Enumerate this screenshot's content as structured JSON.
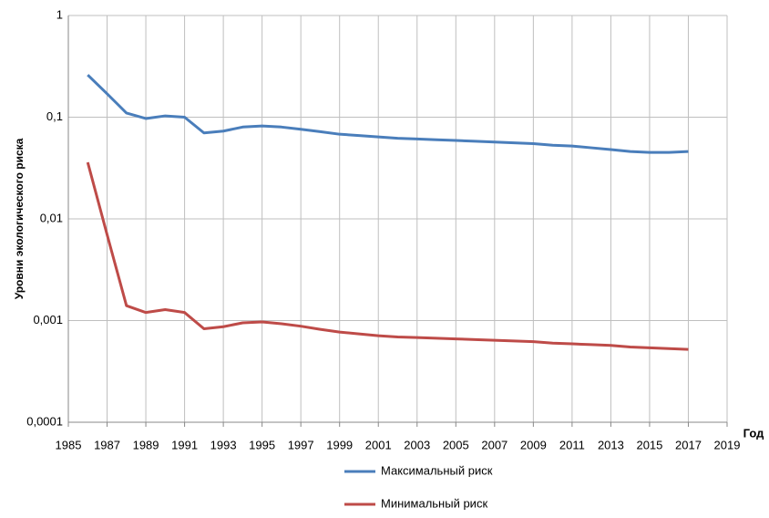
{
  "chart_data": {
    "type": "line",
    "y_label": "Уровни экологического риска",
    "x_label": "Год",
    "x": [
      1986,
      1987,
      1988,
      1989,
      1990,
      1991,
      1992,
      1993,
      1994,
      1995,
      1996,
      1997,
      1998,
      1999,
      2000,
      2001,
      2002,
      2003,
      2004,
      2005,
      2006,
      2007,
      2008,
      2009,
      2010,
      2011,
      2012,
      2013,
      2014,
      2015,
      2016,
      2017
    ],
    "series": [
      {
        "name": "Максимальный риск",
        "color": "#4a7ebb",
        "values": [
          0.26,
          0.17,
          0.11,
          0.097,
          0.103,
          0.1,
          0.07,
          0.073,
          0.08,
          0.082,
          0.08,
          0.076,
          0.072,
          0.068,
          0.066,
          0.064,
          0.062,
          0.061,
          0.06,
          0.059,
          0.058,
          0.057,
          0.056,
          0.055,
          0.053,
          0.052,
          0.05,
          0.048,
          0.046,
          0.045,
          0.045,
          0.046
        ]
      },
      {
        "name": "Минимальный риск",
        "color": "#be4b48",
        "values": [
          0.036,
          0.007,
          0.0014,
          0.0012,
          0.00128,
          0.0012,
          0.00083,
          0.00087,
          0.00095,
          0.00097,
          0.00093,
          0.00088,
          0.00082,
          0.00077,
          0.00074,
          0.00071,
          0.00069,
          0.00068,
          0.00067,
          0.00066,
          0.00065,
          0.00064,
          0.00063,
          0.00062,
          0.0006,
          0.00059,
          0.00058,
          0.00057,
          0.00055,
          0.00054,
          0.00053,
          0.00052
        ]
      }
    ],
    "xlim": [
      1985,
      2019
    ],
    "xticks": [
      1985,
      1987,
      1989,
      1991,
      1993,
      1995,
      1997,
      1999,
      2001,
      2003,
      2005,
      2007,
      2009,
      2011,
      2013,
      2015,
      2017,
      2019
    ],
    "ylim": [
      0.0001,
      1
    ],
    "yticks": [
      {
        "value": 0.0001,
        "label": "0,0001"
      },
      {
        "value": 0.001,
        "label": "0,001"
      },
      {
        "value": 0.01,
        "label": "0,01"
      },
      {
        "value": 0.1,
        "label": "0,1"
      },
      1
    ],
    "log_y": true,
    "grid": true,
    "legend": "bottom"
  }
}
